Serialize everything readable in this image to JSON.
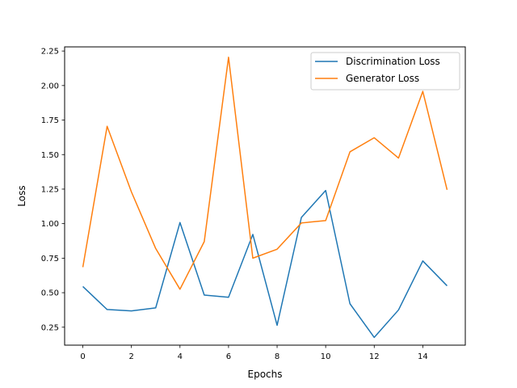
{
  "chart_data": {
    "type": "line",
    "title": "",
    "xlabel": "Epochs",
    "ylabel": "Loss",
    "x": [
      0,
      1,
      2,
      3,
      4,
      5,
      6,
      7,
      8,
      9,
      10,
      11,
      12,
      13,
      14,
      15
    ],
    "xlim": [
      -0.75,
      15.75
    ],
    "ylim": [
      0.12,
      2.28
    ],
    "xticks": [
      0,
      2,
      4,
      6,
      8,
      10,
      12,
      14
    ],
    "yticks": [
      0.25,
      0.5,
      0.75,
      1.0,
      1.25,
      1.5,
      1.75,
      2.0,
      2.25
    ],
    "xtick_labels": [
      "0",
      "2",
      "4",
      "6",
      "8",
      "10",
      "12",
      "14"
    ],
    "ytick_labels": [
      "0.25",
      "0.50",
      "0.75",
      "1.00",
      "1.25",
      "1.50",
      "1.75",
      "2.00",
      "2.25"
    ],
    "grid": false,
    "legend_position": "top-right",
    "series": [
      {
        "name": "Discrimination Loss",
        "color": "#1f77b4",
        "values": [
          0.545,
          0.378,
          0.368,
          0.39,
          1.008,
          0.483,
          0.467,
          0.922,
          0.264,
          1.045,
          1.24,
          0.42,
          0.176,
          0.375,
          0.73,
          0.55
        ]
      },
      {
        "name": "Generator Loss",
        "color": "#ff7f0e",
        "values": [
          0.685,
          1.705,
          1.23,
          0.82,
          0.525,
          0.87,
          2.205,
          0.75,
          0.815,
          1.005,
          1.022,
          1.52,
          1.622,
          1.475,
          1.958,
          1.245
        ]
      }
    ]
  }
}
